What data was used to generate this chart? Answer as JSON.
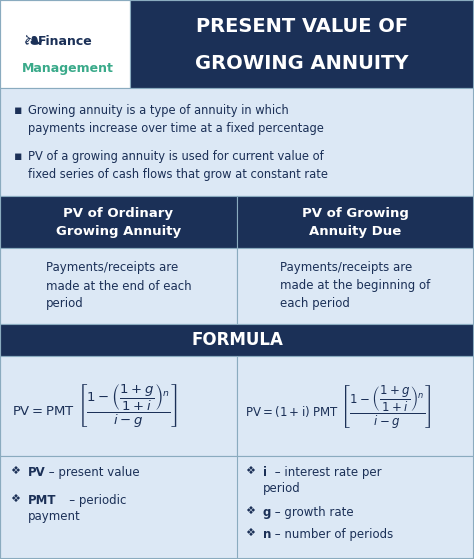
{
  "dark_navy": "#1b3057",
  "light_blue": "#dce8f5",
  "white": "#ffffff",
  "teal_green": "#3aaa8a",
  "border_color": "#8aabbf",
  "title_line1": "PRESENT VALUE OF",
  "title_line2": "GROWING ANNUITY",
  "col1_header": "PV of Ordinary\nGrowing Annuity",
  "col2_header": "PV of Growing\nAnnuity Due",
  "col1_body": "Payments/receipts are\nmade at the end of each\nperiod",
  "col2_body": "Payments/receipts are\nmade at the beginning of\neach period",
  "formula_title": "FORMULA",
  "fig_w": 4.74,
  "fig_h": 5.59,
  "dpi": 100
}
